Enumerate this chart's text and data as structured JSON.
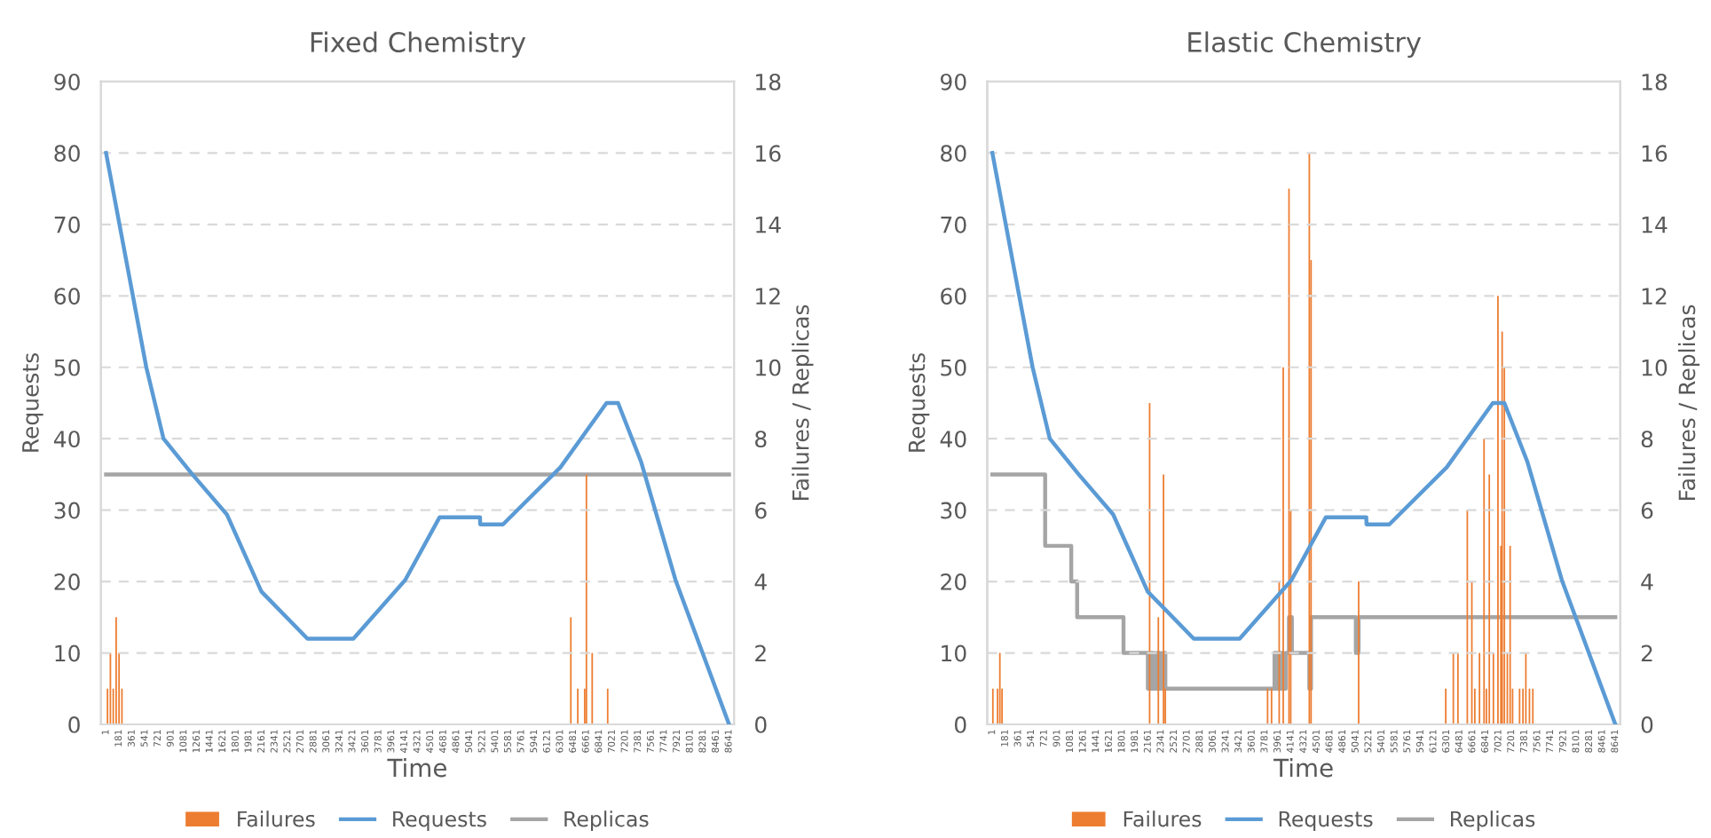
{
  "chart_data": [
    {
      "type": "line",
      "title": "Fixed Chemistry",
      "xlabel": "Time",
      "ylabel": "Requests",
      "y2label": "Failures / Replicas",
      "xlim": [
        -70,
        8710
      ],
      "xticks": [
        1,
        181,
        361,
        541,
        721,
        901,
        1081,
        1261,
        1441,
        1621,
        1801,
        1981,
        2161,
        2341,
        2521,
        2701,
        2881,
        3061,
        3241,
        3421,
        3601,
        3781,
        3961,
        4141,
        4321,
        4501,
        4681,
        4861,
        5041,
        5221,
        5401,
        5581,
        5761,
        5941,
        6121,
        6301,
        6481,
        6661,
        6841,
        7021,
        7201,
        7381,
        7561,
        7741,
        7921,
        8101,
        8281,
        8461,
        8641
      ],
      "ylim": [
        0,
        90
      ],
      "yticks": [
        0,
        10,
        20,
        30,
        40,
        50,
        60,
        70,
        80,
        90
      ],
      "y2lim": [
        0,
        18
      ],
      "y2ticks": [
        0,
        2,
        4,
        6,
        8,
        10,
        12,
        14,
        16,
        18
      ],
      "grid": "y",
      "legend": "bottom",
      "series": [
        {
          "name": "Failures",
          "type": "bar",
          "axis": "y2",
          "color": "#ed7d31",
          "x": [
            21,
            61,
            101,
            141,
            181,
            221,
            6447,
            6543,
            6639,
            6663,
            6743,
            6958
          ],
          "values": [
            1,
            2,
            1,
            3,
            2,
            1,
            3,
            1,
            1,
            7,
            2,
            1
          ]
        },
        {
          "name": "Requests",
          "color": "#5b9bd5",
          "x": [
            1,
            559,
            798,
            1198,
            1676,
            2155,
            2794,
            3431,
            4149,
            4627,
            5187,
            5190,
            5506,
            6303,
            6942,
            7102,
            7420,
            7899,
            8641
          ],
          "values": [
            80,
            50,
            40,
            35,
            29.4,
            18.6,
            12,
            12,
            20.2,
            29,
            29,
            28,
            28,
            36,
            45,
            45,
            36.8,
            20.2,
            0
          ]
        },
        {
          "name": "Replicas",
          "type": "step",
          "axis": "y2",
          "color": "#a5a5a5",
          "x": [
            1,
            8641
          ],
          "values": [
            7,
            7
          ]
        }
      ]
    },
    {
      "type": "line",
      "title": "Elastic Chemistry",
      "xlabel": "Time",
      "ylabel": "Requests",
      "y2label": "Failures / Replicas",
      "xlim": [
        -70,
        8710
      ],
      "xticks": [
        1,
        181,
        361,
        541,
        721,
        901,
        1081,
        1261,
        1441,
        1621,
        1801,
        1981,
        2161,
        2341,
        2521,
        2701,
        2881,
        3061,
        3241,
        3421,
        3601,
        3781,
        3961,
        4141,
        4321,
        4501,
        4681,
        4861,
        5041,
        5221,
        5401,
        5581,
        5761,
        5941,
        6121,
        6301,
        6481,
        6661,
        6841,
        7021,
        7201,
        7381,
        7561,
        7741,
        7921,
        8101,
        8281,
        8461,
        8641
      ],
      "ylim": [
        0,
        90
      ],
      "yticks": [
        0,
        10,
        20,
        30,
        40,
        50,
        60,
        70,
        80,
        90
      ],
      "y2lim": [
        0,
        18
      ],
      "y2ticks": [
        0,
        2,
        4,
        6,
        8,
        10,
        12,
        14,
        16,
        18
      ],
      "grid": "y",
      "legend": "bottom",
      "series": [
        {
          "name": "Failures",
          "type": "bar",
          "axis": "y2",
          "color": "#ed7d31",
          "x": [
            8,
            73,
            105,
            135,
            2182,
            2303,
            2375,
            2400,
            3818,
            3873,
            3979,
            4035,
            4115,
            4139,
            4397,
            4421,
            5081,
            6289,
            6394,
            6458,
            6588,
            6651,
            6692,
            6757,
            6820,
            6853,
            6893,
            6950,
            7013,
            7054,
            7071,
            7102,
            7143,
            7182,
            7216,
            7313,
            7360,
            7400,
            7450,
            7497
          ],
          "values": [
            1,
            1,
            2,
            1,
            9,
            3,
            7,
            1,
            1,
            1,
            4,
            10,
            15,
            6,
            16,
            13,
            4,
            1,
            2,
            2,
            6,
            4,
            1,
            2,
            8,
            1,
            7,
            2,
            12,
            5,
            11,
            10,
            2,
            5,
            1,
            1,
            1,
            2,
            1,
            1
          ]
        },
        {
          "name": "Requests",
          "color": "#5b9bd5",
          "x": [
            1,
            559,
            798,
            1198,
            1676,
            2155,
            2794,
            3431,
            4149,
            4627,
            5187,
            5190,
            5506,
            6303,
            6942,
            7102,
            7420,
            7899,
            8641
          ],
          "values": [
            80,
            50,
            40,
            35,
            29.4,
            18.6,
            12,
            12,
            20.2,
            29,
            29,
            28,
            28,
            36,
            45,
            45,
            36.8,
            20.2,
            0
          ]
        },
        {
          "name": "Replicas",
          "type": "step",
          "axis": "y2",
          "color": "#a5a5a5",
          "x": [
            1,
            733,
            1095,
            1177,
            1820,
            2158,
            2200,
            2240,
            2280,
            2320,
            2360,
            2400,
            2448,
            3914,
            3950,
            3990,
            4030,
            4070,
            4115,
            4155,
            4200,
            4397,
            4420,
            4456,
            5042,
            5080,
            8641
          ],
          "values": [
            7,
            5,
            4,
            3,
            2,
            1,
            2,
            1,
            2,
            1,
            2,
            1,
            1,
            2,
            1,
            2,
            1,
            2,
            3,
            2,
            2,
            1,
            3,
            3,
            2,
            3,
            3
          ]
        }
      ]
    }
  ]
}
